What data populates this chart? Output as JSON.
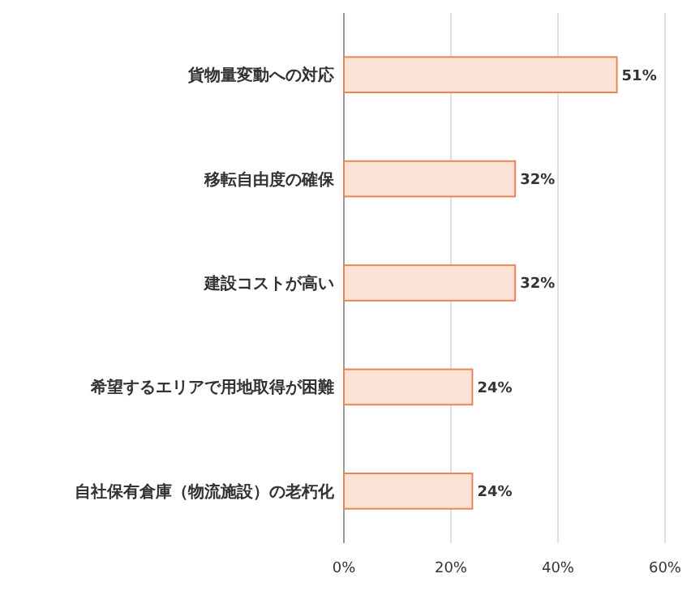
{
  "chart_data": {
    "type": "bar",
    "orientation": "horizontal",
    "categories": [
      "貨物量変動への対応",
      "移転自由度の確保",
      "建設コストが高い",
      "希望するエリアで用地取得が困難",
      "自社保有倉庫（物流施設）の老朽化"
    ],
    "values": [
      51,
      32,
      32,
      24,
      24
    ],
    "value_labels": [
      "51%",
      "32%",
      "32%",
      "24%",
      "24%"
    ],
    "color": "#fde3d6",
    "xlim": [
      0,
      60
    ],
    "xticks": [
      {
        "value": 0,
        "label": "0%"
      },
      {
        "value": 20,
        "label": "20%"
      },
      {
        "value": 40,
        "label": "40%"
      },
      {
        "value": 60,
        "label": "60%"
      }
    ],
    "grid": "x"
  }
}
